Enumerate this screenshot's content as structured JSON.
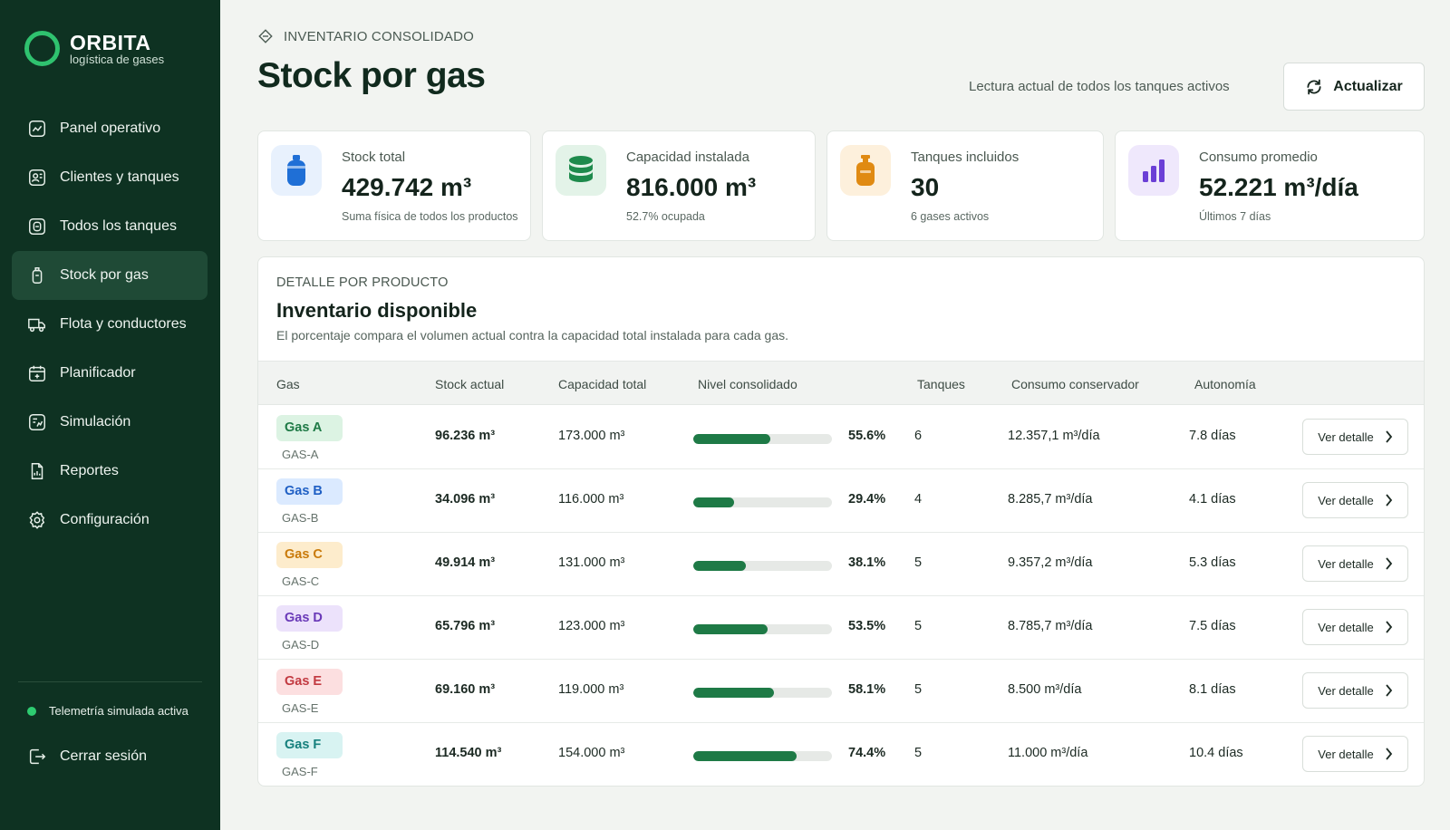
{
  "brand": {
    "name": "ORBITA",
    "subtitle": "logística de gases",
    "accent": "#2fc26f"
  },
  "nav": {
    "items": [
      {
        "label": "Panel operativo",
        "icon": "dashboard-icon"
      },
      {
        "label": "Clientes y tanques",
        "icon": "clients-icon"
      },
      {
        "label": "Todos los tanques",
        "icon": "tanks-icon"
      },
      {
        "label": "Stock por gas",
        "icon": "gas-cylinder-icon",
        "active": true
      },
      {
        "label": "Flota y conductores",
        "icon": "truck-icon"
      },
      {
        "label": "Planificador",
        "icon": "calendar-icon"
      },
      {
        "label": "Simulación",
        "icon": "simulation-icon"
      },
      {
        "label": "Reportes",
        "icon": "report-icon"
      },
      {
        "label": "Configuración",
        "icon": "gear-icon"
      }
    ],
    "telemetry": "Telemetría simulada activa",
    "logout": "Cerrar sesión"
  },
  "header": {
    "eyebrow": "INVENTARIO CONSOLIDADO",
    "title": "Stock por gas",
    "reading": "Lectura actual de todos los tanques activos",
    "refresh_label": "Actualizar"
  },
  "kpis": [
    {
      "label": "Stock total",
      "value": "429.742 m³",
      "sub": "Suma física de todos los productos",
      "icon": "gas-cylinder-icon",
      "color": "#1f6fd6"
    },
    {
      "label": "Capacidad instalada",
      "value": "816.000 m³",
      "sub": "52.7% ocupada",
      "icon": "database-icon",
      "color": "#1e8a4c"
    },
    {
      "label": "Tanques incluidos",
      "value": "30",
      "sub": "6 gases activos",
      "icon": "gas-bottle-icon",
      "color": "#e08a12"
    },
    {
      "label": "Consumo promedio",
      "value": "52.221 m³/día",
      "sub": "Últimos 7 días",
      "icon": "bar-chart-icon",
      "color": "#6b3fd6"
    }
  ],
  "detail": {
    "eyebrow": "DETALLE POR PRODUCTO",
    "title": "Inventario disponible",
    "description": "El porcentaje compara el volumen actual contra la capacidad total instalada para cada gas.",
    "columns": [
      "Gas",
      "Stock actual",
      "Capacidad total",
      "Nivel consolidado",
      "Tanques",
      "Consumo conservador",
      "Autonomía"
    ],
    "action_label": "Ver detalle",
    "rows": [
      {
        "name": "Gas A",
        "code": "GAS-A",
        "stock": "96.236 m³",
        "capacity": "173.000 m³",
        "level": 0.556,
        "pct": "55.6%",
        "tanks": "6",
        "consumption": "12.357,1 m³/día",
        "autonomy": "7.8 días",
        "badge_bg": "#dcf3e3",
        "badge_fg": "#1e7a46"
      },
      {
        "name": "Gas B",
        "code": "GAS-B",
        "stock": "34.096 m³",
        "capacity": "116.000 m³",
        "level": 0.294,
        "pct": "29.4%",
        "tanks": "4",
        "consumption": "8.285,7 m³/día",
        "autonomy": "4.1 días",
        "badge_bg": "#dbeaff",
        "badge_fg": "#1f5fc4"
      },
      {
        "name": "Gas C",
        "code": "GAS-C",
        "stock": "49.914 m³",
        "capacity": "131.000 m³",
        "level": 0.381,
        "pct": "38.1%",
        "tanks": "5",
        "consumption": "9.357,2 m³/día",
        "autonomy": "5.3 días",
        "badge_bg": "#fdeccc",
        "badge_fg": "#c97a0a"
      },
      {
        "name": "Gas D",
        "code": "GAS-D",
        "stock": "65.796 m³",
        "capacity": "123.000 m³",
        "level": 0.535,
        "pct": "53.5%",
        "tanks": "5",
        "consumption": "8.785,7 m³/día",
        "autonomy": "7.5 días",
        "badge_bg": "#ece2fb",
        "badge_fg": "#6a3ab8"
      },
      {
        "name": "Gas E",
        "code": "GAS-E",
        "stock": "69.160 m³",
        "capacity": "119.000 m³",
        "level": 0.581,
        "pct": "58.1%",
        "tanks": "5",
        "consumption": "8.500 m³/día",
        "autonomy": "8.1 días",
        "badge_bg": "#fcdfe0",
        "badge_fg": "#c23a41"
      },
      {
        "name": "Gas F",
        "code": "GAS-F",
        "stock": "114.540 m³",
        "capacity": "154.000 m³",
        "level": 0.744,
        "pct": "74.4%",
        "tanks": "5",
        "consumption": "11.000 m³/día",
        "autonomy": "10.4 días",
        "badge_bg": "#d8f3f2",
        "badge_fg": "#16807d"
      }
    ]
  }
}
